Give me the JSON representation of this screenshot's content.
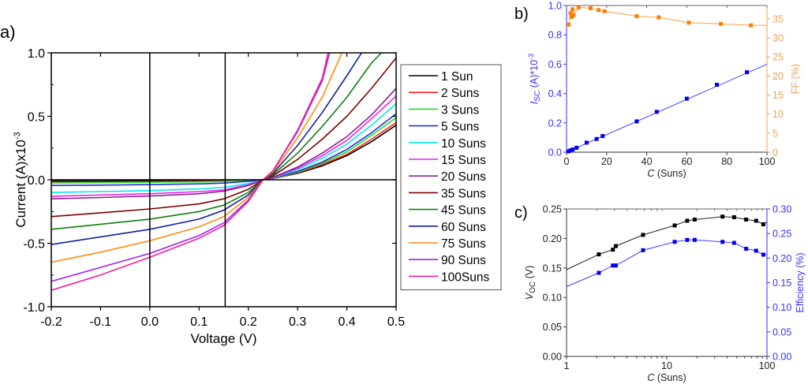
{
  "chart_data": [
    {
      "panel_label": "a)",
      "type": "line",
      "title": "",
      "xlabel": "Voltage (V)",
      "ylabel": "Current (A)x10",
      "ylabel_superscript": "-3",
      "xlim": [
        -0.2,
        0.5
      ],
      "ylim": [
        -1.0,
        1.0
      ],
      "xticks": [
        "-0.2",
        "-0.1",
        "0.0",
        "0.1",
        "0.2",
        "0.3",
        "0.4",
        "0.5"
      ],
      "yticks": [
        "-1.0",
        "-0.5",
        "0.0",
        "0.5",
        "1.0"
      ],
      "reference_lines": [
        {
          "axis": "x",
          "value": 0.0
        },
        {
          "axis": "x",
          "value": 0.153
        },
        {
          "axis": "y",
          "value": 0.0
        }
      ],
      "legend_position": "right-outside",
      "series": [
        {
          "name": "1 Sun",
          "color": "#000000",
          "x": [
            -0.2,
            -0.1,
            0.0,
            0.1,
            0.15,
            0.2,
            0.23,
            0.25,
            0.3,
            0.35,
            0.4,
            0.45,
            0.5
          ],
          "y": [
            -0.01,
            -0.01,
            -0.008,
            -0.006,
            -0.004,
            -0.002,
            0.0,
            0.01,
            0.05,
            0.11,
            0.19,
            0.3,
            0.43
          ]
        },
        {
          "name": "2 Suns",
          "color": "#ff2020",
          "x": [
            -0.2,
            -0.1,
            0.0,
            0.1,
            0.15,
            0.2,
            0.23,
            0.25,
            0.3,
            0.35,
            0.4,
            0.45,
            0.5
          ],
          "y": [
            -0.02,
            -0.018,
            -0.016,
            -0.013,
            -0.01,
            -0.005,
            0.0,
            0.01,
            0.055,
            0.12,
            0.2,
            0.32,
            0.45
          ]
        },
        {
          "name": "3 Suns",
          "color": "#20e020",
          "x": [
            -0.2,
            -0.1,
            0.0,
            0.1,
            0.15,
            0.2,
            0.23,
            0.25,
            0.3,
            0.35,
            0.4,
            0.45,
            0.5
          ],
          "y": [
            -0.025,
            -0.023,
            -0.02,
            -0.017,
            -0.013,
            -0.006,
            0.0,
            0.012,
            0.06,
            0.13,
            0.22,
            0.35,
            0.49
          ]
        },
        {
          "name": "5 Suns",
          "color": "#2030e0",
          "x": [
            -0.2,
            -0.1,
            0.0,
            0.1,
            0.15,
            0.2,
            0.23,
            0.25,
            0.3,
            0.35,
            0.4,
            0.45,
            0.5
          ],
          "y": [
            -0.045,
            -0.042,
            -0.038,
            -0.032,
            -0.026,
            -0.012,
            0.0,
            0.013,
            0.065,
            0.14,
            0.24,
            0.37,
            0.52
          ]
        },
        {
          "name": "10 Suns",
          "color": "#00e8f0",
          "x": [
            -0.2,
            -0.1,
            0.0,
            0.1,
            0.15,
            0.2,
            0.23,
            0.25,
            0.3,
            0.35,
            0.4,
            0.45,
            0.5
          ],
          "y": [
            -0.1,
            -0.093,
            -0.085,
            -0.072,
            -0.06,
            -0.03,
            0.0,
            0.015,
            0.08,
            0.17,
            0.28,
            0.43,
            0.6
          ]
        },
        {
          "name": "15 Suns",
          "color": "#f020f0",
          "x": [
            -0.2,
            -0.1,
            0.0,
            0.1,
            0.15,
            0.2,
            0.23,
            0.25,
            0.3,
            0.35,
            0.4,
            0.45,
            0.5
          ],
          "y": [
            -0.13,
            -0.12,
            -0.11,
            -0.093,
            -0.08,
            -0.04,
            0.0,
            0.017,
            0.09,
            0.19,
            0.31,
            0.48,
            0.66
          ]
        },
        {
          "name": "20 Suns",
          "color": "#902090",
          "x": [
            -0.2,
            -0.1,
            0.0,
            0.1,
            0.15,
            0.2,
            0.23,
            0.25,
            0.3,
            0.35,
            0.4,
            0.45,
            0.5
          ],
          "y": [
            -0.15,
            -0.14,
            -0.128,
            -0.11,
            -0.09,
            -0.045,
            0.0,
            0.019,
            0.1,
            0.21,
            0.34,
            0.51,
            0.72
          ]
        },
        {
          "name": "35 Suns",
          "color": "#800000",
          "x": [
            -0.2,
            -0.1,
            0.0,
            0.1,
            0.15,
            0.2,
            0.23,
            0.25,
            0.3,
            0.35,
            0.4,
            0.45,
            0.5
          ],
          "y": [
            -0.29,
            -0.26,
            -0.23,
            -0.19,
            -0.15,
            -0.075,
            0.0,
            0.03,
            0.16,
            0.32,
            0.5,
            0.72,
            0.96
          ]
        },
        {
          "name": "45 Suns",
          "color": "#108010",
          "x": [
            -0.2,
            -0.1,
            0.0,
            0.1,
            0.15,
            0.2,
            0.23,
            0.25,
            0.3,
            0.35,
            0.4,
            0.45,
            0.47
          ],
          "y": [
            -0.39,
            -0.35,
            -0.31,
            -0.25,
            -0.2,
            -0.1,
            0.0,
            0.04,
            0.21,
            0.42,
            0.65,
            0.92,
            1.0
          ]
        },
        {
          "name": "60 Suns",
          "color": "#1020a0",
          "x": [
            -0.2,
            -0.1,
            0.0,
            0.1,
            0.15,
            0.2,
            0.23,
            0.25,
            0.3,
            0.35,
            0.4,
            0.43
          ],
          "y": [
            -0.51,
            -0.45,
            -0.39,
            -0.31,
            -0.24,
            -0.12,
            0.0,
            0.05,
            0.27,
            0.53,
            0.82,
            1.0
          ]
        },
        {
          "name": "75 Suns",
          "color": "#ff8c10",
          "x": [
            -0.2,
            -0.1,
            0.0,
            0.1,
            0.15,
            0.2,
            0.23,
            0.25,
            0.3,
            0.35,
            0.39
          ],
          "y": [
            -0.65,
            -0.57,
            -0.48,
            -0.37,
            -0.29,
            -0.14,
            0.0,
            0.06,
            0.33,
            0.65,
            1.0
          ]
        },
        {
          "name": "90 Suns",
          "color": "#a020f0",
          "x": [
            -0.2,
            -0.1,
            0.0,
            0.1,
            0.15,
            0.2,
            0.23,
            0.25,
            0.3,
            0.35,
            0.365
          ],
          "y": [
            -0.8,
            -0.69,
            -0.58,
            -0.44,
            -0.34,
            -0.16,
            0.0,
            0.07,
            0.38,
            0.78,
            1.0
          ]
        },
        {
          "name": "100Suns",
          "color": "#f0209a",
          "x": [
            -0.2,
            -0.1,
            0.0,
            0.1,
            0.15,
            0.2,
            0.23,
            0.25,
            0.3,
            0.35,
            0.362
          ],
          "y": [
            -0.87,
            -0.75,
            -0.61,
            -0.46,
            -0.36,
            -0.17,
            0.0,
            0.07,
            0.39,
            0.8,
            1.0
          ]
        }
      ]
    },
    {
      "panel_label": "b)",
      "type": "line",
      "xlabel": "C (Suns)",
      "xlabel_italic_part": "C",
      "xlim": [
        0,
        100
      ],
      "xticks": [
        "0",
        "20",
        "40",
        "60",
        "80",
        "100"
      ],
      "y_left": {
        "label": "I",
        "label_subscript": "SC",
        "label_rest": " (A)*10",
        "label_superscript": "-3",
        "lim": [
          0.0,
          1.0
        ],
        "ticks": [
          "0.0",
          "0.2",
          "0.4",
          "0.6",
          "0.8",
          "1.0"
        ],
        "color": "#3333ff"
      },
      "y_right": {
        "label": "FF (%)",
        "lim": [
          0,
          38.5
        ],
        "ticks": [
          "0",
          "5",
          "10",
          "15",
          "20",
          "25",
          "30",
          "35"
        ],
        "color": "#f0a050"
      },
      "series": [
        {
          "name": "Isc",
          "axis": "left",
          "color": "#0000ee",
          "line_color": "#4040ff",
          "x": [
            1,
            2,
            3,
            5,
            10,
            15,
            18,
            35,
            45,
            60,
            75,
            90
          ],
          "y": [
            0.006,
            0.012,
            0.018,
            0.03,
            0.065,
            0.09,
            0.11,
            0.21,
            0.275,
            0.365,
            0.46,
            0.545
          ],
          "fit_line": {
            "x": [
              0,
              100
            ],
            "y": [
              0.0,
              0.6
            ]
          }
        },
        {
          "name": "FF",
          "axis": "right",
          "color": "#ff8000",
          "line_color": "#ffa040",
          "x": [
            1,
            2,
            2.5,
            3,
            3.5,
            6,
            12,
            16,
            19,
            35,
            46,
            61,
            77,
            92,
            100
          ],
          "y": [
            33.5,
            36.5,
            35.5,
            37.5,
            36.0,
            38.0,
            37.8,
            37.3,
            37.0,
            35.7,
            35.4,
            34.0,
            33.7,
            33.3,
            33.3
          ]
        }
      ]
    },
    {
      "panel_label": "c)",
      "type": "line",
      "xlabel": "C (Suns)",
      "xlabel_italic_part": "C",
      "xscale": "log",
      "xlim": [
        1,
        100
      ],
      "xticks": [
        "1",
        "10",
        "100"
      ],
      "y_left": {
        "label": "V",
        "label_subscript": "OC",
        "label_rest": " (V)",
        "lim": [
          0.0,
          0.25
        ],
        "ticks": [
          "0.00",
          "0.05",
          "0.10",
          "0.15",
          "0.20",
          "0.25"
        ],
        "color": "#000000"
      },
      "y_right": {
        "label": "Efficiency (%)",
        "lim": [
          0.0,
          0.3
        ],
        "ticks": [
          "0.00",
          "0.05",
          "0.10",
          "0.15",
          "0.20",
          "0.25",
          "0.30"
        ],
        "color": "#3333ff"
      },
      "series": [
        {
          "name": "Voc",
          "axis": "left",
          "color": "#000000",
          "x": [
            1,
            2.1,
            2.9,
            3.1,
            5.8,
            12,
            16,
            19,
            36,
            47,
            62,
            78,
            92,
            100
          ],
          "y": [
            0.147,
            0.173,
            0.181,
            0.187,
            0.206,
            0.222,
            0.23,
            0.232,
            0.237,
            0.236,
            0.232,
            0.23,
            0.224,
            0.228
          ]
        },
        {
          "name": "Efficiency",
          "axis": "right",
          "color": "#0000ee",
          "x": [
            1,
            2.1,
            2.9,
            3.1,
            5.8,
            12,
            16,
            19,
            36,
            47,
            62,
            78,
            92,
            100
          ],
          "y": [
            0.142,
            0.17,
            0.185,
            0.185,
            0.216,
            0.233,
            0.237,
            0.237,
            0.233,
            0.231,
            0.219,
            0.215,
            0.207,
            0.208
          ]
        }
      ]
    }
  ]
}
